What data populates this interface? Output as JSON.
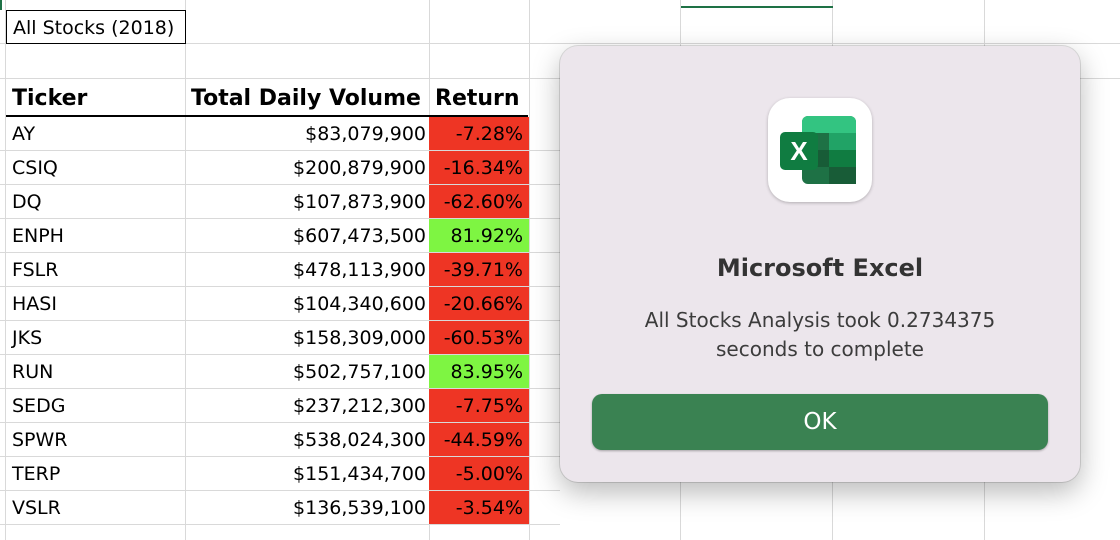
{
  "sheet": {
    "title": "All Stocks (2018)",
    "headers": {
      "ticker": "Ticker",
      "volume": "Total Daily Volume",
      "return": "Return"
    },
    "rows": [
      {
        "ticker": "AY",
        "volume": "$83,079,900",
        "return": "-7.28%",
        "positive": false
      },
      {
        "ticker": "CSIQ",
        "volume": "$200,879,900",
        "return": "-16.34%",
        "positive": false
      },
      {
        "ticker": "DQ",
        "volume": "$107,873,900",
        "return": "-62.60%",
        "positive": false
      },
      {
        "ticker": "ENPH",
        "volume": "$607,473,500",
        "return": "81.92%",
        "positive": true
      },
      {
        "ticker": "FSLR",
        "volume": "$478,113,900",
        "return": "-39.71%",
        "positive": false
      },
      {
        "ticker": "HASI",
        "volume": "$104,340,600",
        "return": "-20.66%",
        "positive": false
      },
      {
        "ticker": "JKS",
        "volume": "$158,309,000",
        "return": "-60.53%",
        "positive": false
      },
      {
        "ticker": "RUN",
        "volume": "$502,757,100",
        "return": "83.95%",
        "positive": true
      },
      {
        "ticker": "SEDG",
        "volume": "$237,212,300",
        "return": "-7.75%",
        "positive": false
      },
      {
        "ticker": "SPWR",
        "volume": "$538,024,300",
        "return": "-44.59%",
        "positive": false
      },
      {
        "ticker": "TERP",
        "volume": "$151,434,700",
        "return": "-5.00%",
        "positive": false
      },
      {
        "ticker": "VSLR",
        "volume": "$136,539,100",
        "return": "-3.54%",
        "positive": false
      }
    ],
    "colors": {
      "negative_fill": "#ee3524",
      "positive_fill": "#7ef542"
    }
  },
  "dialog": {
    "app_icon": "excel-app-icon",
    "icon_letter": "X",
    "title": "Microsoft Excel",
    "message": "All Stocks Analysis took 0.2734375 seconds to complete",
    "ok_label": "OK",
    "button_color": "#3a8252"
  }
}
